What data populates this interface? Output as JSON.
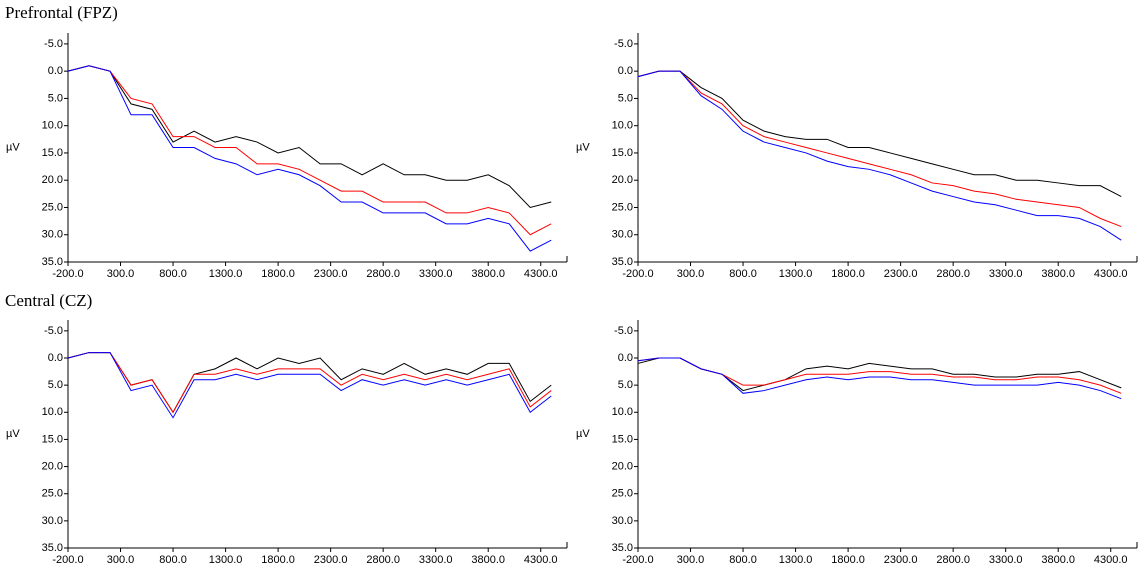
{
  "chart_data": [
    {
      "type": "line",
      "title": "Prefrontal (FPZ)",
      "ylabel": "µV",
      "y_inverted": true,
      "grid": false,
      "x": [
        -200,
        0,
        200,
        400,
        600,
        800,
        1000,
        1200,
        1400,
        1600,
        1800,
        2000,
        2200,
        2400,
        2600,
        2800,
        3000,
        3200,
        3400,
        3600,
        3800,
        4000,
        4200,
        4400
      ],
      "xlim": [
        -200,
        4550
      ],
      "ylim": [
        -7,
        35
      ],
      "xticks": [
        {
          "value": -200,
          "label": "-200.0"
        },
        {
          "value": 300,
          "label": "300.0"
        },
        {
          "value": 800,
          "label": "800.0"
        },
        {
          "value": 1300,
          "label": "1300.0"
        },
        {
          "value": 1800,
          "label": "1800.0"
        },
        {
          "value": 2300,
          "label": "2300.0"
        },
        {
          "value": 2800,
          "label": "2800.0"
        },
        {
          "value": 3300,
          "label": "3300.0"
        },
        {
          "value": 3800,
          "label": "3800.0"
        },
        {
          "value": 4300,
          "label": "4300.0"
        }
      ],
      "yticks": [
        {
          "value": -5,
          "label": "-5.0"
        },
        {
          "value": 0,
          "label": "0.0"
        },
        {
          "value": 5,
          "label": "5.0"
        },
        {
          "value": 10,
          "label": "10.0"
        },
        {
          "value": 15,
          "label": "15.0"
        },
        {
          "value": 20,
          "label": "20.0"
        },
        {
          "value": 25,
          "label": "25.0"
        },
        {
          "value": 30,
          "label": "30.0"
        },
        {
          "value": 35,
          "label": "35.0"
        }
      ],
      "series": [
        {
          "color": "#000000",
          "values": [
            0,
            -1,
            0,
            6,
            7,
            13,
            11,
            13,
            12,
            13,
            15,
            14,
            17,
            17,
            19,
            17,
            19,
            19,
            20,
            20,
            19,
            21,
            25,
            24
          ]
        },
        {
          "color": "#ff0000",
          "values": [
            0,
            -1,
            0,
            5,
            6,
            12,
            12,
            14,
            14,
            17,
            17,
            18,
            20,
            22,
            22,
            24,
            24,
            24,
            26,
            26,
            25,
            26,
            30,
            28
          ]
        },
        {
          "color": "#0000ff",
          "values": [
            0,
            -1,
            0,
            8,
            8,
            14,
            14,
            16,
            17,
            19,
            18,
            19,
            21,
            24,
            24,
            26,
            26,
            26,
            28,
            28,
            27,
            28,
            33,
            31
          ]
        }
      ]
    },
    {
      "type": "line",
      "ylabel": "µV",
      "y_inverted": true,
      "grid": false,
      "x": [
        -200,
        0,
        200,
        400,
        600,
        800,
        1000,
        1200,
        1400,
        1600,
        1800,
        2000,
        2200,
        2400,
        2600,
        2800,
        3000,
        3200,
        3400,
        3600,
        3800,
        4000,
        4200,
        4400
      ],
      "xlim": [
        -200,
        4550
      ],
      "ylim": [
        -7,
        35
      ],
      "xticks": [
        {
          "value": -200,
          "label": "-200.0"
        },
        {
          "value": 300,
          "label": "300.0"
        },
        {
          "value": 800,
          "label": "800.0"
        },
        {
          "value": 1300,
          "label": "1300.0"
        },
        {
          "value": 1800,
          "label": "1800.0"
        },
        {
          "value": 2300,
          "label": "2300.0"
        },
        {
          "value": 2800,
          "label": "2800.0"
        },
        {
          "value": 3300,
          "label": "3300.0"
        },
        {
          "value": 3800,
          "label": "3800.0"
        },
        {
          "value": 4300,
          "label": "4300.0"
        }
      ],
      "yticks": [
        {
          "value": -5,
          "label": "-5.0"
        },
        {
          "value": 0,
          "label": "0.0"
        },
        {
          "value": 5,
          "label": "5.0"
        },
        {
          "value": 10,
          "label": "10.0"
        },
        {
          "value": 15,
          "label": "15.0"
        },
        {
          "value": 20,
          "label": "20.0"
        },
        {
          "value": 25,
          "label": "25.0"
        },
        {
          "value": 30,
          "label": "30.0"
        },
        {
          "value": 35,
          "label": "35.0"
        }
      ],
      "series": [
        {
          "color": "#000000",
          "values": [
            1,
            0,
            0,
            3,
            5,
            9,
            11,
            12,
            12.5,
            12.5,
            14,
            14,
            15,
            16,
            17,
            18,
            19,
            19,
            20,
            20,
            20.5,
            21,
            21,
            23
          ]
        },
        {
          "color": "#ff0000",
          "values": [
            1,
            0,
            0,
            4,
            6,
            10,
            12,
            13,
            14,
            15,
            16,
            17,
            18,
            19,
            20.5,
            21,
            22,
            22.5,
            23.5,
            24,
            24.5,
            25,
            27,
            28.5
          ]
        },
        {
          "color": "#0000ff",
          "values": [
            1,
            0,
            0,
            4.5,
            7,
            11,
            13,
            14,
            15,
            16.5,
            17.5,
            18,
            19,
            20.5,
            22,
            23,
            24,
            24.5,
            25.5,
            26.5,
            26.5,
            27,
            28.5,
            31
          ]
        }
      ]
    },
    {
      "type": "line",
      "title": "Central (CZ)",
      "ylabel": "µV",
      "y_inverted": true,
      "grid": false,
      "x": [
        -200,
        0,
        200,
        400,
        600,
        800,
        1000,
        1200,
        1400,
        1600,
        1800,
        2000,
        2200,
        2400,
        2600,
        2800,
        3000,
        3200,
        3400,
        3600,
        3800,
        4000,
        4200,
        4400
      ],
      "xlim": [
        -200,
        4550
      ],
      "ylim": [
        -7,
        35
      ],
      "xticks": [
        {
          "value": -200,
          "label": "-200.0"
        },
        {
          "value": 300,
          "label": "300.0"
        },
        {
          "value": 800,
          "label": "800.0"
        },
        {
          "value": 1300,
          "label": "1300.0"
        },
        {
          "value": 1800,
          "label": "1800.0"
        },
        {
          "value": 2300,
          "label": "2300.0"
        },
        {
          "value": 2800,
          "label": "2800.0"
        },
        {
          "value": 3300,
          "label": "3300.0"
        },
        {
          "value": 3800,
          "label": "3800.0"
        },
        {
          "value": 4300,
          "label": "4300.0"
        }
      ],
      "yticks": [
        {
          "value": -5,
          "label": "-5.0"
        },
        {
          "value": 0,
          "label": "0.0"
        },
        {
          "value": 5,
          "label": "5.0"
        },
        {
          "value": 10,
          "label": "10.0"
        },
        {
          "value": 15,
          "label": "15.0"
        },
        {
          "value": 20,
          "label": "20.0"
        },
        {
          "value": 25,
          "label": "25.0"
        },
        {
          "value": 30,
          "label": "30.0"
        },
        {
          "value": 35,
          "label": "35.0"
        }
      ],
      "series": [
        {
          "color": "#000000",
          "values": [
            0,
            -1,
            -1,
            5,
            4,
            10,
            3,
            2,
            0,
            2,
            0,
            1,
            0,
            4,
            2,
            3,
            1,
            3,
            2,
            3,
            1,
            1,
            8,
            5
          ]
        },
        {
          "color": "#ff0000",
          "values": [
            0,
            -1,
            -1,
            5,
            4,
            10,
            3,
            3,
            2,
            3,
            2,
            2,
            2,
            5,
            3,
            4,
            3,
            4,
            3,
            4,
            3,
            2,
            9,
            6
          ]
        },
        {
          "color": "#0000ff",
          "values": [
            0,
            -1,
            -1,
            6,
            5,
            11,
            4,
            4,
            3,
            4,
            3,
            3,
            3,
            6,
            4,
            5,
            4,
            5,
            4,
            5,
            4,
            3,
            10,
            7
          ]
        }
      ]
    },
    {
      "type": "line",
      "ylabel": "µV",
      "y_inverted": true,
      "grid": false,
      "x": [
        -200,
        0,
        200,
        400,
        600,
        800,
        1000,
        1200,
        1400,
        1600,
        1800,
        2000,
        2200,
        2400,
        2600,
        2800,
        3000,
        3200,
        3400,
        3600,
        3800,
        4000,
        4200,
        4400
      ],
      "xlim": [
        -200,
        4550
      ],
      "ylim": [
        -7,
        35
      ],
      "xticks": [
        {
          "value": -200,
          "label": "-200.0"
        },
        {
          "value": 300,
          "label": "300.0"
        },
        {
          "value": 800,
          "label": "800.0"
        },
        {
          "value": 1300,
          "label": "1300.0"
        },
        {
          "value": 1800,
          "label": "1800.0"
        },
        {
          "value": 2300,
          "label": "2300.0"
        },
        {
          "value": 2800,
          "label": "2800.0"
        },
        {
          "value": 3300,
          "label": "3300.0"
        },
        {
          "value": 3800,
          "label": "3800.0"
        },
        {
          "value": 4300,
          "label": "4300.0"
        }
      ],
      "yticks": [
        {
          "value": -5,
          "label": "-5.0"
        },
        {
          "value": 0,
          "label": "0.0"
        },
        {
          "value": 5,
          "label": "5.0"
        },
        {
          "value": 10,
          "label": "10.0"
        },
        {
          "value": 15,
          "label": "15.0"
        },
        {
          "value": 20,
          "label": "20.0"
        },
        {
          "value": 25,
          "label": "25.0"
        },
        {
          "value": 30,
          "label": "30.0"
        },
        {
          "value": 35,
          "label": "35.0"
        }
      ],
      "series": [
        {
          "color": "#000000",
          "values": [
            1,
            0,
            0,
            2,
            3,
            6,
            5,
            4,
            2,
            1.5,
            2,
            1,
            1.5,
            2,
            2,
            3,
            3,
            3.5,
            3.5,
            3,
            3,
            2.5,
            4,
            5.5
          ]
        },
        {
          "color": "#ff0000",
          "values": [
            0.5,
            0,
            0,
            2,
            3,
            5,
            5,
            4,
            3,
            3,
            3,
            2.5,
            2.5,
            3,
            3,
            3.5,
            3.5,
            4,
            4,
            3.5,
            3.5,
            4,
            5,
            6.5
          ]
        },
        {
          "color": "#0000ff",
          "values": [
            0.5,
            0,
            0,
            2,
            3,
            6.5,
            6,
            5,
            4,
            3.5,
            4,
            3.5,
            3.5,
            4,
            4,
            4.5,
            5,
            5,
            5,
            5,
            4.5,
            5,
            6,
            7.5
          ]
        }
      ]
    }
  ]
}
